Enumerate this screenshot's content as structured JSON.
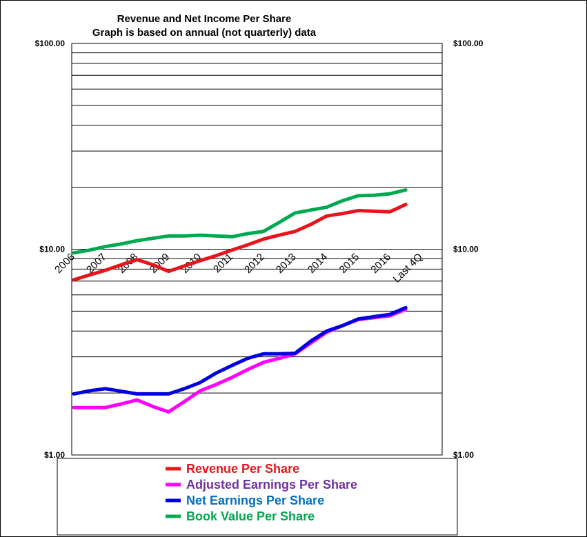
{
  "chart_data": {
    "type": "line",
    "title": "Revenue  and Net Income  Per Share",
    "subtitle": "Graph is based  on annual  (not quarterly) data",
    "y_scale": "log",
    "ylim": [
      1,
      100
    ],
    "y_ticks": [
      "$1.00",
      "$10.00",
      "$100.00"
    ],
    "y_tick_values": [
      1,
      10,
      100
    ],
    "categories": [
      "2006",
      "2007",
      "2008",
      "2009",
      "2010",
      "2011",
      "2012",
      "2013",
      "2014",
      "2015",
      "2016",
      "Last 4Q"
    ],
    "series": [
      {
        "name": "Revenue Per Share",
        "color": "#e8141b",
        "x": [
          0,
          0.5,
          1,
          1.5,
          2,
          2.5,
          3,
          3.5,
          4,
          4.5,
          5,
          5.5,
          6,
          6.5,
          7,
          7.5,
          8,
          8.5,
          9,
          9.5,
          10,
          10.5
        ],
        "values": [
          7.1,
          7.5,
          7.9,
          8.4,
          8.9,
          8.4,
          7.8,
          8.3,
          8.8,
          9.3,
          9.9,
          10.5,
          11.2,
          11.7,
          12.2,
          13.2,
          14.5,
          14.9,
          15.4,
          15.3,
          15.2,
          16.5
        ]
      },
      {
        "name": "Adjusted Earnings Per Share",
        "color": "#ff00ff",
        "label_color": "#7030a0",
        "x": [
          0,
          0.5,
          1,
          1.5,
          2,
          2.5,
          3,
          3.5,
          4,
          4.5,
          5,
          5.5,
          6,
          6.5,
          7,
          7.5,
          8,
          8.5,
          9,
          9.5,
          10,
          10.5
        ],
        "values": [
          1.7,
          1.7,
          1.7,
          1.77,
          1.85,
          1.72,
          1.62,
          1.82,
          2.05,
          2.2,
          2.38,
          2.6,
          2.82,
          2.95,
          3.1,
          3.5,
          3.95,
          4.25,
          4.55,
          4.65,
          4.75,
          5.1
        ]
      },
      {
        "name": "Net Earnings Per Share",
        "color": "#0000e0",
        "label_color": "#0070c0",
        "x": [
          0,
          0.5,
          1,
          1.5,
          2,
          2.5,
          3,
          3.5,
          4,
          4.5,
          5,
          5.5,
          6,
          6.5,
          7,
          7.5,
          8,
          8.5,
          9,
          9.5,
          10,
          10.5
        ],
        "values": [
          1.98,
          2.05,
          2.1,
          2.04,
          1.98,
          1.98,
          1.98,
          2.1,
          2.25,
          2.5,
          2.72,
          2.95,
          3.1,
          3.1,
          3.12,
          3.58,
          4.0,
          4.25,
          4.58,
          4.7,
          4.82,
          5.2
        ]
      },
      {
        "name": "Book Value Per Share",
        "color": "#00a84f",
        "x": [
          0,
          0.5,
          1,
          1.5,
          2,
          2.5,
          3,
          3.5,
          4,
          4.5,
          5,
          5.5,
          6,
          6.5,
          7,
          7.5,
          8,
          8.5,
          9,
          9.5,
          10,
          10.5
        ],
        "values": [
          9.6,
          9.9,
          10.3,
          10.6,
          11.0,
          11.3,
          11.6,
          11.6,
          11.7,
          11.6,
          11.5,
          11.9,
          12.2,
          13.5,
          15.0,
          15.5,
          16.0,
          17.2,
          18.2,
          18.3,
          18.6,
          19.4
        ]
      }
    ],
    "legend": {
      "position": "bottom"
    },
    "grid": true
  }
}
